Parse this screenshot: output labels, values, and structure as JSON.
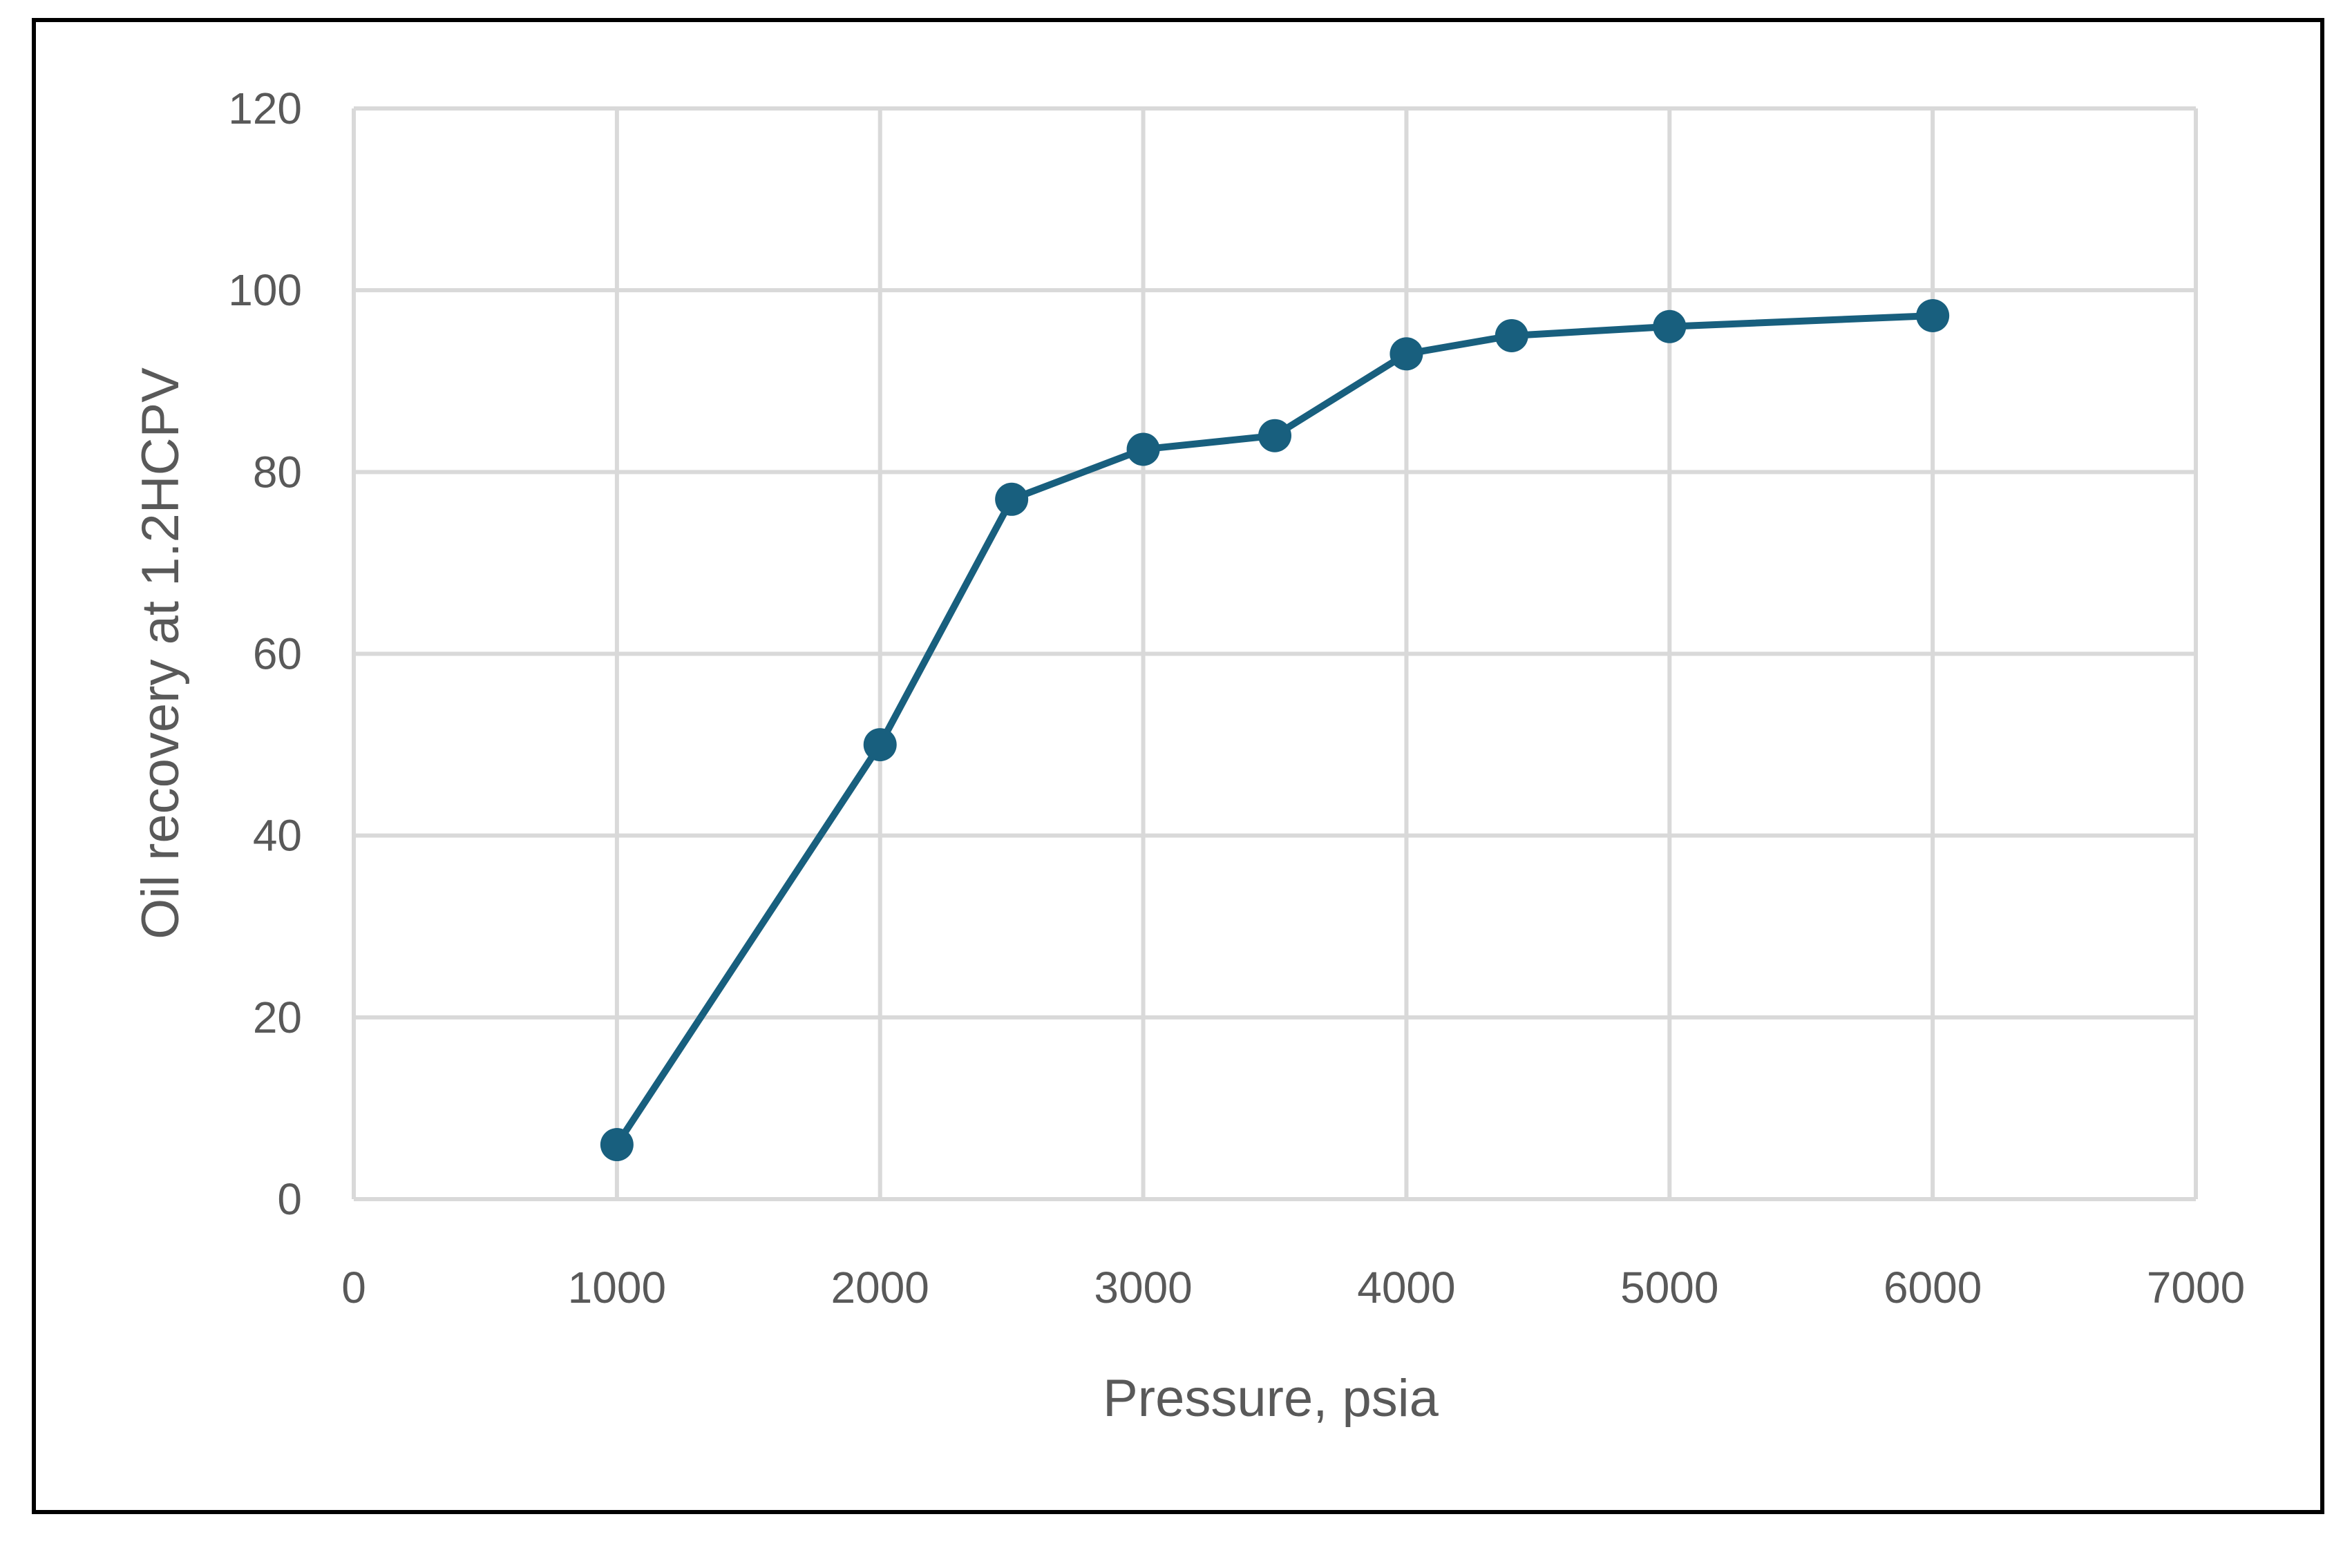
{
  "chart_data": {
    "type": "line",
    "title": "",
    "xlabel": "Pressure, psia",
    "ylabel": "Oil recovery at 1.2HCPV",
    "xlim": [
      0,
      7000
    ],
    "ylim": [
      0,
      120
    ],
    "x_ticks": [
      0,
      1000,
      2000,
      3000,
      4000,
      5000,
      6000,
      7000
    ],
    "y_ticks": [
      0,
      20,
      40,
      60,
      80,
      100,
      120
    ],
    "grid": true,
    "legend": "none",
    "series": [
      {
        "color": "#185f7e",
        "marker": "circle",
        "points": [
          {
            "x": 1000,
            "y": 6
          },
          {
            "x": 2000,
            "y": 50
          },
          {
            "x": 2500,
            "y": 77
          },
          {
            "x": 3000,
            "y": 82.5
          },
          {
            "x": 3500,
            "y": 84
          },
          {
            "x": 4000,
            "y": 93
          },
          {
            "x": 4400,
            "y": 95
          },
          {
            "x": 5000,
            "y": 96
          },
          {
            "x": 6000,
            "y": 97.2
          }
        ]
      }
    ]
  }
}
